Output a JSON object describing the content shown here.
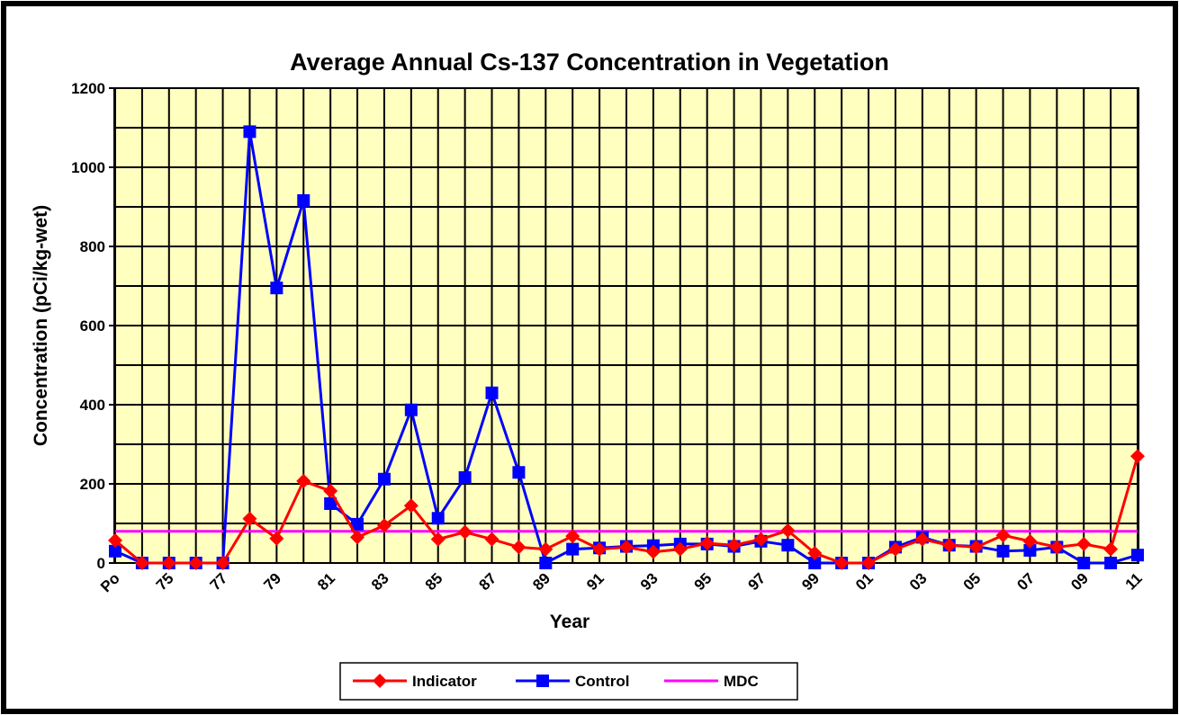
{
  "chart_data": {
    "type": "line",
    "title": "Average Annual Cs-137 Concentration in Vegetation",
    "x_label": "Year",
    "y_label": "Concentration  (pCi/kg-wet)",
    "categories": [
      "Po",
      null,
      "75",
      null,
      "77",
      null,
      "79",
      null,
      "81",
      null,
      "83",
      null,
      "85",
      null,
      "87",
      null,
      "89",
      null,
      "91",
      null,
      "93",
      null,
      "95",
      null,
      "97",
      null,
      "99",
      null,
      "01",
      null,
      "03",
      null,
      "05",
      null,
      "07",
      null,
      "09",
      null,
      "11"
    ],
    "series": [
      {
        "name": "Indicator",
        "color": "#ff0000",
        "marker": "diamond",
        "values": [
          57,
          0,
          0,
          0,
          0,
          112,
          62,
          207,
          182,
          65,
          95,
          145,
          60,
          78,
          60,
          40,
          35,
          68,
          35,
          40,
          28,
          35,
          50,
          45,
          60,
          82,
          25,
          0,
          0,
          35,
          60,
          45,
          40,
          70,
          55,
          40,
          48,
          35,
          270
        ]
      },
      {
        "name": "Control",
        "color": "#0000ff",
        "marker": "square",
        "values": [
          30,
          0,
          0,
          0,
          0,
          1090,
          695,
          916,
          150,
          98,
          212,
          387,
          113,
          216,
          430,
          229,
          0,
          35,
          38,
          42,
          44,
          48,
          48,
          42,
          55,
          45,
          0,
          0,
          0,
          40,
          65,
          45,
          42,
          30,
          32,
          40,
          0,
          0,
          20
        ]
      },
      {
        "name": "MDC",
        "color": "#ff00ff",
        "marker": "none",
        "values": [
          80,
          80,
          80,
          80,
          80,
          80,
          80,
          80,
          80,
          80,
          80,
          80,
          80,
          80,
          80,
          80,
          80,
          80,
          80,
          80,
          80,
          80,
          80,
          80,
          80,
          80,
          80,
          80,
          80,
          80,
          80,
          80,
          80,
          80,
          80,
          80,
          80,
          80,
          80
        ]
      }
    ],
    "ylim": [
      0,
      1200
    ],
    "yticks": [
      0,
      200,
      400,
      600,
      800,
      1000,
      1200
    ],
    "ygrid": [
      0,
      100,
      200,
      300,
      400,
      500,
      600,
      700,
      800,
      900,
      1000,
      1100,
      1200
    ],
    "grid": true,
    "plot_background": "#ffffc0",
    "legend": "bottom"
  }
}
